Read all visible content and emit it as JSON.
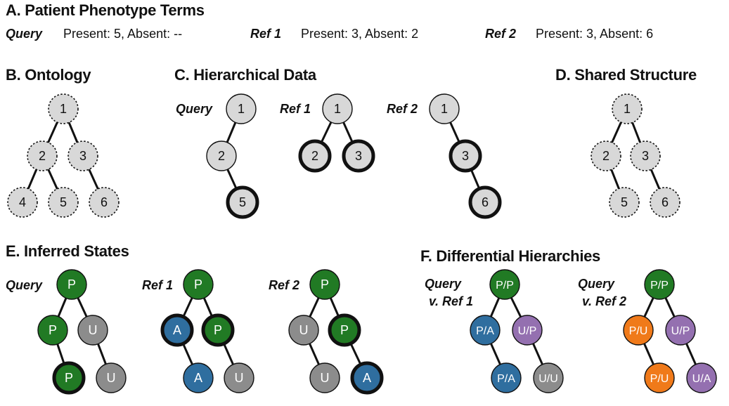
{
  "sectionA": {
    "title": "A. Patient Phenotype Terms",
    "entries": [
      {
        "label": "Query",
        "text": "Present: 5, Absent: --"
      },
      {
        "label": "Ref 1",
        "text": "Present: 3, Absent: 2"
      },
      {
        "label": "Ref 2",
        "text": "Present: 3, Absent: 6"
      }
    ]
  },
  "sectionB": {
    "title": "B. Ontology"
  },
  "sectionC": {
    "title": "C. Hierarchical  Data",
    "labels": [
      "Query",
      "Ref 1",
      "Ref 2"
    ]
  },
  "sectionD": {
    "title": "D. Shared Structure"
  },
  "sectionE": {
    "title": "E. Inferred States",
    "labels": [
      "Query",
      "Ref 1",
      "Ref 2"
    ]
  },
  "sectionF": {
    "title": "F. Differential Hierarchies",
    "labels": [
      [
        "Query",
        "v. Ref 1"
      ],
      [
        "Query",
        "v. Ref 2"
      ]
    ]
  },
  "colors": {
    "present": "#217a24",
    "absent": "#2f6e9f",
    "unknown": "#8c8c8c",
    "light": "#d8d8d8",
    "partial_unknown": "#f07a1a",
    "unknown_present": "#9470b0"
  },
  "trees": [
    {
      "id": "ontology",
      "nodes": [
        {
          "t": "1",
          "s": "dotted"
        },
        {
          "t": "2",
          "s": "dotted"
        },
        {
          "t": "3",
          "s": "dotted"
        },
        {
          "t": "4",
          "s": "dotted"
        },
        {
          "t": "5",
          "s": "dotted"
        },
        {
          "t": "6",
          "s": "dotted"
        }
      ]
    },
    {
      "id": "hier-query",
      "nodes": [
        {
          "t": "1",
          "s": "normal"
        },
        {
          "t": "2",
          "s": "normal"
        },
        {
          "t": "5",
          "s": "thick"
        }
      ]
    },
    {
      "id": "hier-ref1",
      "nodes": [
        {
          "t": "1",
          "s": "normal"
        },
        {
          "t": "2",
          "s": "thick"
        },
        {
          "t": "3",
          "s": "thick"
        }
      ]
    },
    {
      "id": "hier-ref2",
      "nodes": [
        {
          "t": "1",
          "s": "normal"
        },
        {
          "t": "3",
          "s": "thick"
        },
        {
          "t": "6",
          "s": "thick"
        }
      ]
    },
    {
      "id": "shared",
      "nodes": [
        {
          "t": "1",
          "s": "dotted"
        },
        {
          "t": "2",
          "s": "dotted"
        },
        {
          "t": "3",
          "s": "dotted"
        },
        {
          "t": "5",
          "s": "dotted"
        },
        {
          "t": "6",
          "s": "dotted"
        }
      ]
    },
    {
      "id": "inf-query",
      "nodes": [
        {
          "t": "P",
          "s": "normal",
          "c": "present"
        },
        {
          "t": "P",
          "s": "normal",
          "c": "present"
        },
        {
          "t": "U",
          "s": "normal",
          "c": "unknown"
        },
        {
          "t": "P",
          "s": "thick",
          "c": "present"
        },
        {
          "t": "U",
          "s": "normal",
          "c": "unknown"
        }
      ]
    },
    {
      "id": "inf-ref1",
      "nodes": [
        {
          "t": "P",
          "s": "normal",
          "c": "present"
        },
        {
          "t": "A",
          "s": "thick",
          "c": "absent"
        },
        {
          "t": "P",
          "s": "thick",
          "c": "present"
        },
        {
          "t": "A",
          "s": "normal",
          "c": "absent"
        },
        {
          "t": "U",
          "s": "normal",
          "c": "unknown"
        }
      ]
    },
    {
      "id": "inf-ref2",
      "nodes": [
        {
          "t": "P",
          "s": "normal",
          "c": "present"
        },
        {
          "t": "U",
          "s": "normal",
          "c": "unknown"
        },
        {
          "t": "P",
          "s": "thick",
          "c": "present"
        },
        {
          "t": "U",
          "s": "normal",
          "c": "unknown"
        },
        {
          "t": "A",
          "s": "thick",
          "c": "absent"
        }
      ]
    },
    {
      "id": "diff-ref1",
      "nodes": [
        {
          "t": "P/P",
          "s": "normal",
          "c": "present"
        },
        {
          "t": "P/A",
          "s": "normal",
          "c": "absent"
        },
        {
          "t": "U/P",
          "s": "normal",
          "c": "unknown_present"
        },
        {
          "t": "P/A",
          "s": "normal",
          "c": "absent"
        },
        {
          "t": "U/U",
          "s": "normal",
          "c": "unknown"
        }
      ]
    },
    {
      "id": "diff-ref2",
      "nodes": [
        {
          "t": "P/P",
          "s": "normal",
          "c": "present"
        },
        {
          "t": "P/U",
          "s": "normal",
          "c": "partial_unknown"
        },
        {
          "t": "U/P",
          "s": "normal",
          "c": "unknown_present"
        },
        {
          "t": "P/U",
          "s": "normal",
          "c": "partial_unknown"
        },
        {
          "t": "U/A",
          "s": "normal",
          "c": "unknown_present"
        }
      ]
    }
  ]
}
